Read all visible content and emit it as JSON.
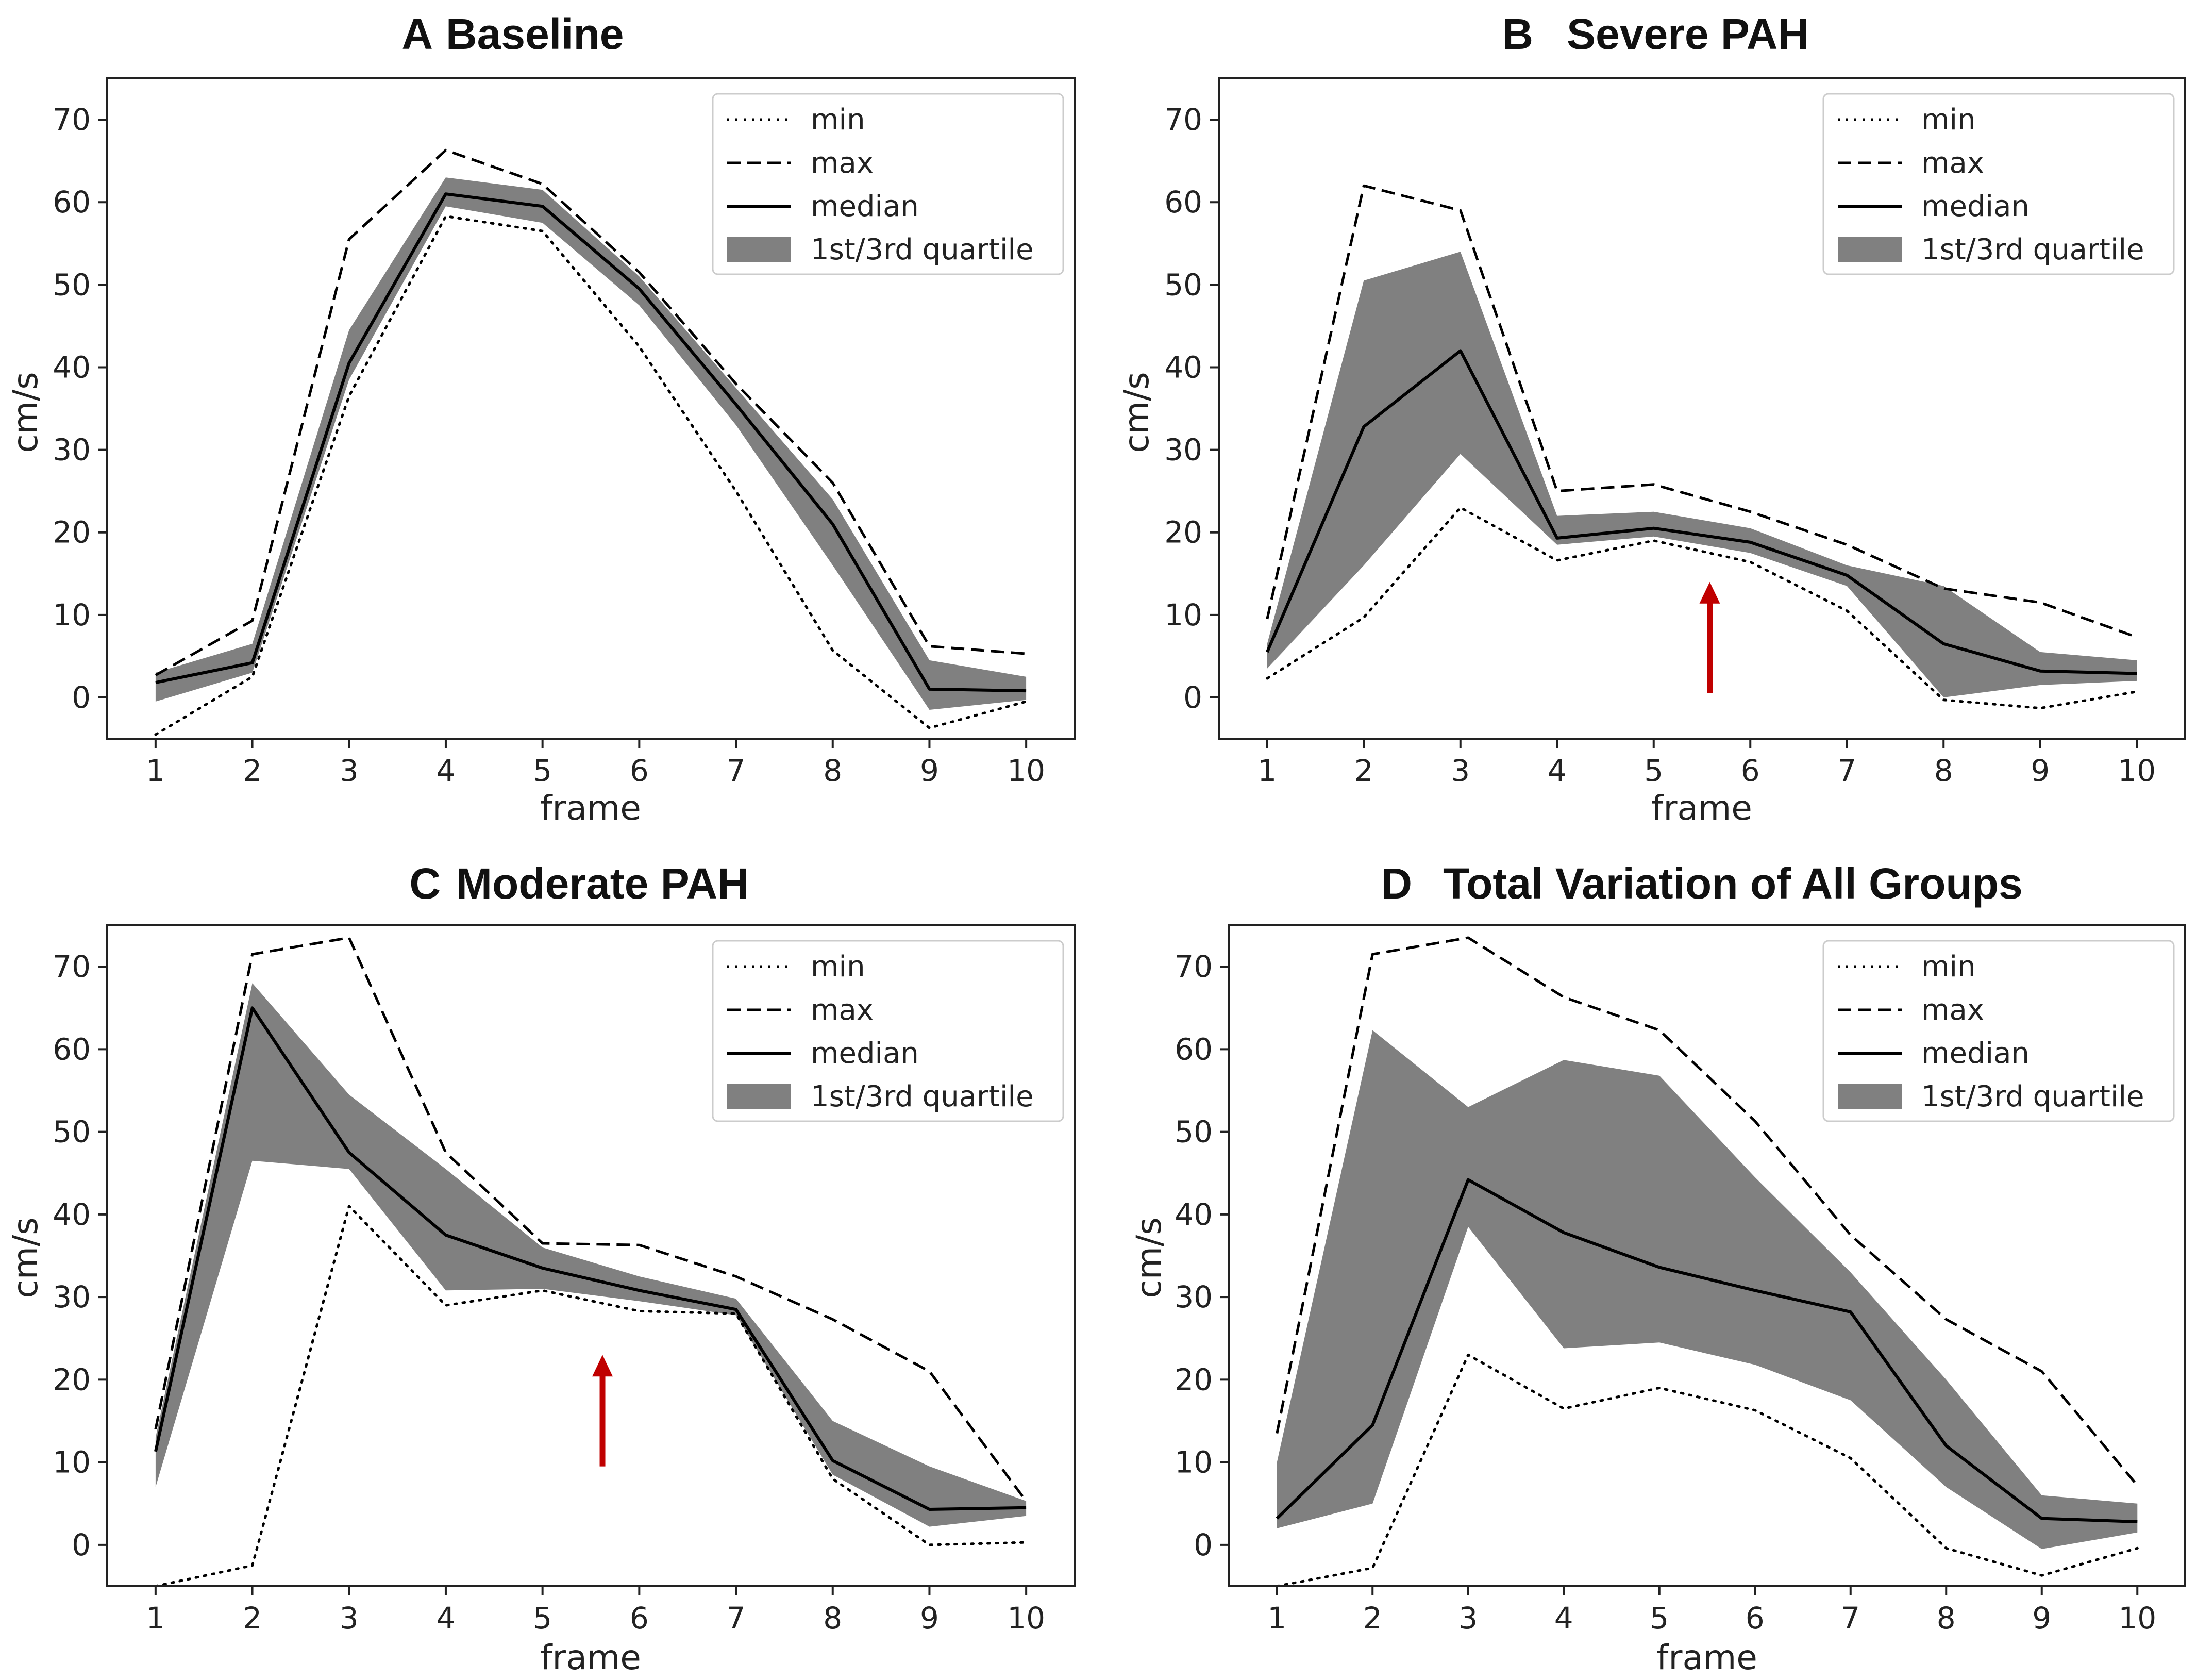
{
  "colors": {
    "line": "#000000",
    "band": "#808080",
    "arrow": "#c00000",
    "frame": "#222222"
  },
  "chart_data": [
    {
      "letter": "A",
      "title": "Baseline",
      "type": "line",
      "xlabel": "frame",
      "ylabel": "cm/s",
      "x": [
        1,
        2,
        3,
        4,
        5,
        6,
        7,
        8,
        9,
        10
      ],
      "xlim": [
        0.5,
        10.5
      ],
      "ylim": [
        -5,
        75
      ],
      "yticks": [
        0,
        10,
        20,
        30,
        40,
        50,
        60,
        70
      ],
      "grid": false,
      "legend_position": "top-right",
      "legend": [
        "min",
        "max",
        "median",
        "1st/3rd quartile"
      ],
      "series": [
        {
          "name": "min",
          "style": "dotted",
          "values": [
            -4.5,
            2.5,
            36.5,
            58.3,
            56.5,
            42.5,
            25,
            5.7,
            -3.7,
            -0.5
          ]
        },
        {
          "name": "max",
          "style": "dashed",
          "values": [
            2.7,
            9.3,
            55.5,
            66.3,
            62.2,
            51.5,
            38,
            26,
            6.2,
            5.3
          ]
        },
        {
          "name": "median",
          "style": "solid",
          "values": [
            1.8,
            4.2,
            40.5,
            61,
            59.5,
            49.5,
            35.5,
            21,
            1,
            0.8
          ]
        },
        {
          "name": "1st/3rd quartile",
          "style": "band",
          "lower": [
            -0.5,
            3,
            38.5,
            59.5,
            57.5,
            47.5,
            33,
            16,
            -1.5,
            -0.3
          ],
          "upper": [
            3,
            6.5,
            44.5,
            63,
            61.5,
            51,
            37.5,
            24,
            4.5,
            2.5
          ]
        }
      ],
      "annotations": []
    },
    {
      "letter": "B",
      "title": "Severe PAH",
      "type": "line",
      "xlabel": "frame",
      "ylabel": "cm/s",
      "x": [
        1,
        2,
        3,
        4,
        5,
        6,
        7,
        8,
        9,
        10
      ],
      "xlim": [
        0.5,
        10.5
      ],
      "ylim": [
        -5,
        75
      ],
      "yticks": [
        0,
        10,
        20,
        30,
        40,
        50,
        60,
        70
      ],
      "grid": false,
      "legend_position": "top-right",
      "legend": [
        "min",
        "max",
        "median",
        "1st/3rd quartile"
      ],
      "series": [
        {
          "name": "min",
          "style": "dotted",
          "values": [
            2.3,
            9.7,
            23,
            16.6,
            19,
            16.4,
            10.5,
            -0.3,
            -1.3,
            0.7
          ]
        },
        {
          "name": "max",
          "style": "dashed",
          "values": [
            9.5,
            62,
            59,
            25,
            25.8,
            22.5,
            18.5,
            13.2,
            11.5,
            7.3
          ]
        },
        {
          "name": "median",
          "style": "solid",
          "values": [
            5.5,
            32.8,
            42,
            19.3,
            20.5,
            18.8,
            14.8,
            6.5,
            3.2,
            2.9
          ]
        },
        {
          "name": "1st/3rd quartile",
          "style": "band",
          "lower": [
            3.5,
            16,
            29.5,
            18.5,
            19.5,
            17.5,
            13.5,
            0,
            1.5,
            2
          ],
          "upper": [
            6.5,
            50.5,
            54,
            22,
            22.5,
            20.5,
            16,
            13.5,
            5.5,
            4.5
          ]
        }
      ],
      "annotations": [
        {
          "type": "arrow",
          "x": 5.58,
          "y_from": 0.5,
          "y_to": 14
        }
      ]
    },
    {
      "letter": "C",
      "title": "Moderate PAH",
      "type": "line",
      "xlabel": "frame",
      "ylabel": "cm/s",
      "x": [
        1,
        2,
        3,
        4,
        5,
        6,
        7,
        8,
        9,
        10
      ],
      "xlim": [
        0.5,
        10.5
      ],
      "ylim": [
        -5,
        75
      ],
      "yticks": [
        0,
        10,
        20,
        30,
        40,
        50,
        60,
        70
      ],
      "grid": false,
      "legend_position": "top-right",
      "legend": [
        "min",
        "max",
        "median",
        "1st/3rd quartile"
      ],
      "series": [
        {
          "name": "min",
          "style": "dotted",
          "values": [
            -5,
            -2.5,
            41,
            29,
            30.8,
            28.3,
            28,
            8,
            0,
            0.3
          ]
        },
        {
          "name": "max",
          "style": "dashed",
          "values": [
            14,
            71.5,
            73.5,
            47.5,
            36.5,
            36.3,
            32.5,
            27.3,
            21,
            5.3
          ]
        },
        {
          "name": "median",
          "style": "solid",
          "values": [
            11.3,
            65,
            47.5,
            37.5,
            33.5,
            30.8,
            28.5,
            10.2,
            4.3,
            4.5
          ]
        },
        {
          "name": "1st/3rd quartile",
          "style": "band",
          "lower": [
            7,
            46.5,
            45.5,
            30.8,
            31,
            29.5,
            27.8,
            8.5,
            2.2,
            3.5
          ],
          "upper": [
            13,
            68,
            54.5,
            45.5,
            36,
            32.5,
            29.8,
            15,
            9.5,
            5.3
          ]
        }
      ],
      "annotations": [
        {
          "type": "arrow",
          "x": 5.62,
          "y_from": 9.5,
          "y_to": 23
        }
      ]
    },
    {
      "letter": "D",
      "title": "Total Variation of All Groups",
      "type": "line",
      "xlabel": "frame",
      "ylabel": "cm/s",
      "x": [
        1,
        2,
        3,
        4,
        5,
        6,
        7,
        8,
        9,
        10
      ],
      "xlim": [
        0.5,
        10.5
      ],
      "ylim": [
        -5,
        75
      ],
      "yticks": [
        0,
        10,
        20,
        30,
        40,
        50,
        60,
        70
      ],
      "grid": false,
      "legend_position": "top-right",
      "legend": [
        "min",
        "max",
        "median",
        "1st/3rd quartile"
      ],
      "series": [
        {
          "name": "min",
          "style": "dotted",
          "values": [
            -5,
            -2.8,
            23,
            16.5,
            19,
            16.3,
            10.5,
            -0.4,
            -3.7,
            -0.4
          ]
        },
        {
          "name": "max",
          "style": "dashed",
          "values": [
            13.5,
            71.5,
            73.5,
            66.3,
            62.3,
            51.3,
            37.5,
            27.3,
            21,
            7.2
          ]
        },
        {
          "name": "median",
          "style": "solid",
          "values": [
            3.2,
            14.5,
            44.2,
            37.8,
            33.6,
            30.8,
            28.2,
            12,
            3.2,
            2.8
          ]
        },
        {
          "name": "1st/3rd quartile",
          "style": "band",
          "lower": [
            2,
            5,
            38.5,
            23.8,
            24.5,
            21.8,
            17.5,
            7,
            -0.5,
            1.5
          ],
          "upper": [
            10,
            62.3,
            53,
            58.7,
            56.8,
            44.5,
            33,
            20,
            6,
            5
          ]
        }
      ],
      "annotations": []
    }
  ]
}
